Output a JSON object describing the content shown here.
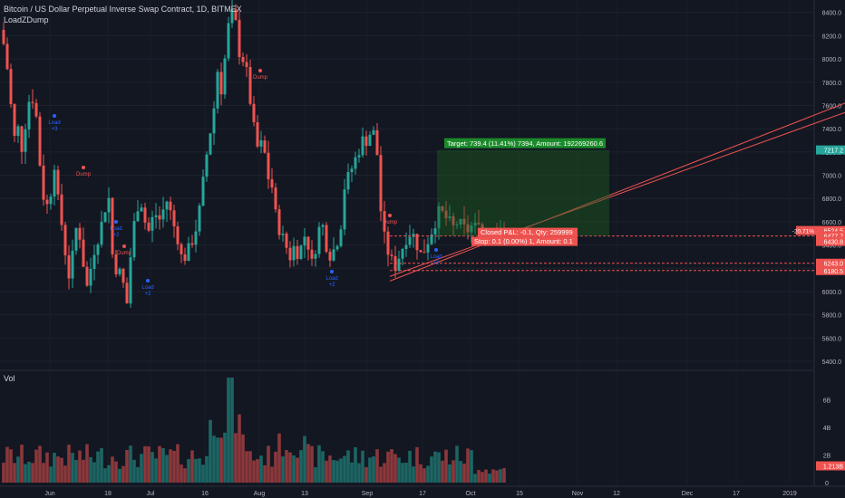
{
  "header": {
    "title": "Bitcoin / US Dollar Perpetual Inverse Swap Contract, 1D, BITMEX",
    "indicator": "LoadZDump"
  },
  "volume_label": "Vol",
  "chart_data": {
    "type": "candlestick",
    "price_axis": {
      "ticks": [
        5400,
        5600,
        5800,
        6000,
        6200,
        6400,
        6600,
        6800,
        7000,
        7200,
        7400,
        7600,
        7800,
        8000,
        8200,
        8400
      ],
      "tick_labels": [
        "5400.0",
        "5600.0",
        "5800.0",
        "6000.0",
        "6200.0",
        "6400.0",
        "6600.0",
        "6800.0",
        "7000.0",
        "7200.0",
        "7400.0",
        "7600.0",
        "7800.0",
        "8000.0",
        "8200.0",
        "8400.0"
      ],
      "range": [
        5330,
        8460
      ]
    },
    "volume_axis": {
      "ticks": [
        0,
        2,
        4,
        6
      ],
      "tick_labels": [
        "0",
        "2B",
        "4B",
        "6B"
      ],
      "range": [
        0,
        7.8
      ]
    },
    "time_axis": {
      "labels": [
        "Jun",
        "18",
        "Jul",
        "16",
        "Aug",
        "13",
        "Sep",
        "17",
        "Oct",
        "15",
        "Nov",
        "12",
        "Dec",
        "17",
        "2019"
      ]
    },
    "price_badges": [
      {
        "label": "7217.2",
        "value": 7217.2,
        "color": "#26a69a"
      },
      {
        "label": "6524.5",
        "value": 6524.5,
        "color": "#ef5350"
      },
      {
        "label": "6477.8",
        "value": 6477.8,
        "color": "#ef5350"
      },
      {
        "label": "6477.7",
        "value": 6477.7,
        "color": "#ef5350"
      },
      {
        "label": "6430.8",
        "value": 6430.8,
        "color": "#ef5350"
      },
      {
        "label": "6243.0",
        "value": 6243.0,
        "color": "#ef5350"
      },
      {
        "label": "6180.5",
        "value": 6180.5,
        "color": "#ef5350"
      }
    ],
    "last_pct_label": "-20.71%",
    "volume_badge": {
      "label": "1.213B",
      "value": 1.213
    },
    "levels": [
      6477.7,
      6243.0,
      6180.5
    ],
    "long_position": {
      "entry": 6477.8,
      "target": 7217.2,
      "target_label": "Target: 739.4 (11.41%) 7394, Amount: 192269260.6",
      "stop_label": "Stop: 0.1 (0.00%) 1, Amount: 0.1",
      "open_label": "Closed P&L: -0.1, Qty: 259999"
    },
    "signals": [
      {
        "text": "Load",
        "sub": "+3",
        "kind": "load"
      },
      {
        "text": "Dump",
        "sub": "",
        "kind": "dump"
      },
      {
        "text": "Load",
        "sub": "+2",
        "kind": "load"
      },
      {
        "text": "Dump",
        "sub": "",
        "kind": "dump"
      },
      {
        "text": "Load",
        "sub": "+2",
        "kind": "load"
      },
      {
        "text": "Dump",
        "sub": "",
        "kind": "dump"
      },
      {
        "text": "Load",
        "sub": "+2",
        "kind": "load"
      },
      {
        "text": "Dump",
        "sub": "",
        "kind": "dump"
      },
      {
        "text": "Load",
        "sub": "+2",
        "kind": "load"
      }
    ],
    "colors": {
      "up": "#26a69a",
      "down": "#ef5350",
      "bg": "#131722",
      "grid": "#1e222d",
      "text": "#b2b5be"
    }
  }
}
